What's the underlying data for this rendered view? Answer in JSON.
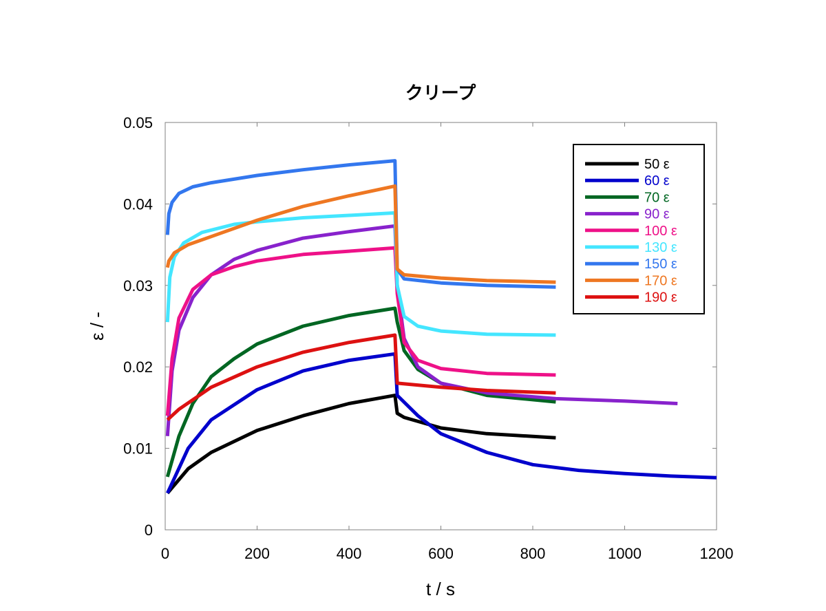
{
  "chart_data": {
    "type": "line",
    "title": "クリープ",
    "xlabel": "t / s",
    "ylabel": "ε / -",
    "xlim": [
      0,
      1200
    ],
    "ylim": [
      0,
      0.05
    ],
    "x_ticks": [
      "0",
      "200",
      "400",
      "600",
      "800",
      "1000",
      "1200"
    ],
    "y_ticks": [
      "0",
      "0.01",
      "0.02",
      "0.03",
      "0.04",
      "0.05"
    ],
    "x_tick_values": [
      0,
      200,
      400,
      600,
      800,
      1000,
      1200
    ],
    "y_tick_values": [
      0,
      0.01,
      0.02,
      0.03,
      0.04,
      0.05
    ],
    "grid": false,
    "legend_position": "top-right",
    "series": [
      {
        "name": "50 ε",
        "color": "#000000",
        "x": [
          5,
          50,
          100,
          200,
          300,
          400,
          500,
          505,
          520,
          600,
          700,
          850
        ],
        "y": [
          0.0045,
          0.0075,
          0.0095,
          0.0122,
          0.014,
          0.0155,
          0.0165,
          0.0143,
          0.0138,
          0.0125,
          0.0118,
          0.0113
        ]
      },
      {
        "name": "60 ε",
        "color": "#0000cc",
        "x": [
          5,
          50,
          100,
          200,
          300,
          400,
          500,
          505,
          550,
          600,
          700,
          800,
          900,
          1000,
          1100,
          1200
        ],
        "y": [
          0.0045,
          0.01,
          0.0135,
          0.0172,
          0.0195,
          0.0208,
          0.0216,
          0.0165,
          0.014,
          0.0118,
          0.0095,
          0.008,
          0.0073,
          0.0069,
          0.0066,
          0.0064
        ]
      },
      {
        "name": "70 ε",
        "color": "#006622",
        "x": [
          5,
          30,
          60,
          100,
          150,
          200,
          300,
          400,
          500,
          505,
          520,
          550,
          600,
          700,
          850
        ],
        "y": [
          0.0065,
          0.0115,
          0.0155,
          0.0188,
          0.021,
          0.0228,
          0.025,
          0.0263,
          0.0272,
          0.0255,
          0.022,
          0.0197,
          0.018,
          0.0165,
          0.0157
        ]
      },
      {
        "name": "90 ε",
        "color": "#8822cc",
        "x": [
          5,
          15,
          30,
          60,
          100,
          150,
          200,
          300,
          400,
          500,
          505,
          520,
          550,
          600,
          700,
          850,
          1000,
          1115
        ],
        "y": [
          0.0115,
          0.0195,
          0.0245,
          0.0285,
          0.0313,
          0.0332,
          0.0343,
          0.0358,
          0.0366,
          0.0373,
          0.03,
          0.0235,
          0.02,
          0.018,
          0.0168,
          0.0161,
          0.0158,
          0.0155
        ]
      },
      {
        "name": "100 ε",
        "color": "#ee1188",
        "x": [
          5,
          15,
          30,
          60,
          100,
          150,
          200,
          300,
          400,
          500,
          505,
          520,
          550,
          600,
          700,
          850
        ],
        "y": [
          0.014,
          0.021,
          0.026,
          0.0295,
          0.0313,
          0.0323,
          0.033,
          0.0338,
          0.0342,
          0.0346,
          0.029,
          0.023,
          0.0208,
          0.0198,
          0.0192,
          0.019
        ]
      },
      {
        "name": "130 ε",
        "color": "#44e6ff",
        "x": [
          5,
          10,
          20,
          40,
          80,
          150,
          200,
          300,
          400,
          500,
          505,
          520,
          550,
          600,
          700,
          850
        ],
        "y": [
          0.0255,
          0.031,
          0.0335,
          0.0352,
          0.0365,
          0.0375,
          0.0378,
          0.0383,
          0.0386,
          0.0389,
          0.03,
          0.0262,
          0.025,
          0.0244,
          0.024,
          0.0239
        ]
      },
      {
        "name": "150 ε",
        "color": "#3377ee",
        "x": [
          5,
          8,
          15,
          30,
          60,
          100,
          200,
          300,
          400,
          500,
          505,
          520,
          600,
          700,
          850
        ],
        "y": [
          0.0362,
          0.0388,
          0.0402,
          0.0413,
          0.0421,
          0.0426,
          0.0435,
          0.0442,
          0.0448,
          0.0453,
          0.032,
          0.0308,
          0.0303,
          0.03,
          0.0298
        ]
      },
      {
        "name": "170 ε",
        "color": "#ee7722",
        "x": [
          5,
          8,
          20,
          50,
          100,
          200,
          300,
          400,
          500,
          505,
          520,
          600,
          700,
          850
        ],
        "y": [
          0.0322,
          0.033,
          0.034,
          0.035,
          0.036,
          0.038,
          0.0397,
          0.041,
          0.0422,
          0.032,
          0.0313,
          0.0309,
          0.0306,
          0.0304
        ]
      },
      {
        "name": "190 ε",
        "color": "#dd1111",
        "x": [
          5,
          30,
          100,
          200,
          300,
          400,
          500,
          505,
          600,
          700,
          850
        ],
        "y": [
          0.0135,
          0.0148,
          0.0175,
          0.02,
          0.0218,
          0.023,
          0.0239,
          0.018,
          0.0175,
          0.0171,
          0.0168
        ]
      }
    ]
  }
}
